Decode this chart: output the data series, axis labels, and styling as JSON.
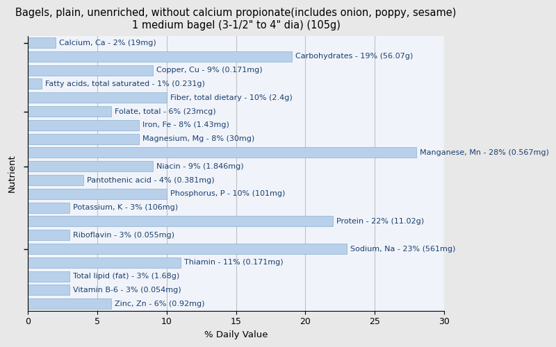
{
  "title_line1": "Bagels, plain, unenriched, without calcium propionate(includes onion, poppy, sesame)",
  "title_line2": "1 medium bagel (3-1/2\" to 4\" dia) (105g)",
  "xlabel": "% Daily Value",
  "ylabel": "Nutrient",
  "background_color": "#e8e8e8",
  "plot_bg_color": "#f0f4fa",
  "bar_color": "#b8d0ea",
  "bar_edge_color": "#8aafd0",
  "xlim": [
    0,
    30
  ],
  "xticks": [
    0,
    5,
    10,
    15,
    20,
    25,
    30
  ],
  "nutrients": [
    {
      "label": "Calcium, Ca - 2% (19mg)",
      "value": 2,
      "text_anchor": "right_of_bar"
    },
    {
      "label": "Carbohydrates - 19% (56.07g)",
      "value": 19,
      "text_anchor": "right_of_bar"
    },
    {
      "label": "Copper, Cu - 9% (0.171mg)",
      "value": 9,
      "text_anchor": "right_of_bar"
    },
    {
      "label": "Fatty acids, total saturated - 1% (0.231g)",
      "value": 1,
      "text_anchor": "right_of_bar"
    },
    {
      "label": "Fiber, total dietary - 10% (2.4g)",
      "value": 10,
      "text_anchor": "right_of_bar"
    },
    {
      "label": "Folate, total - 6% (23mcg)",
      "value": 6,
      "text_anchor": "right_of_bar"
    },
    {
      "label": "Iron, Fe - 8% (1.43mg)",
      "value": 8,
      "text_anchor": "right_of_bar"
    },
    {
      "label": "Magnesium, Mg - 8% (30mg)",
      "value": 8,
      "text_anchor": "right_of_bar"
    },
    {
      "label": "Manganese, Mn - 28% (0.567mg)",
      "value": 28,
      "text_anchor": "right_of_bar"
    },
    {
      "label": "Niacin - 9% (1.846mg)",
      "value": 9,
      "text_anchor": "right_of_bar"
    },
    {
      "label": "Pantothenic acid - 4% (0.381mg)",
      "value": 4,
      "text_anchor": "right_of_bar"
    },
    {
      "label": "Phosphorus, P - 10% (101mg)",
      "value": 10,
      "text_anchor": "right_of_bar"
    },
    {
      "label": "Potassium, K - 3% (106mg)",
      "value": 3,
      "text_anchor": "right_of_bar"
    },
    {
      "label": "Protein - 22% (11.02g)",
      "value": 22,
      "text_anchor": "right_of_bar"
    },
    {
      "label": "Riboflavin - 3% (0.055mg)",
      "value": 3,
      "text_anchor": "right_of_bar"
    },
    {
      "label": "Sodium, Na - 23% (561mg)",
      "value": 23,
      "text_anchor": "right_of_bar"
    },
    {
      "label": "Thiamin - 11% (0.171mg)",
      "value": 11,
      "text_anchor": "right_of_bar"
    },
    {
      "label": "Total lipid (fat) - 3% (1.68g)",
      "value": 3,
      "text_anchor": "right_of_bar"
    },
    {
      "label": "Vitamin B-6 - 3% (0.054mg)",
      "value": 3,
      "text_anchor": "right_of_bar"
    },
    {
      "label": "Zinc, Zn - 6% (0.92mg)",
      "value": 6,
      "text_anchor": "right_of_bar"
    }
  ],
  "text_color": "#1a3e6e",
  "title_fontsize": 10.5,
  "axis_label_fontsize": 9.5,
  "bar_label_fontsize": 8,
  "tick_fontsize": 9,
  "bar_height": 0.75,
  "ytick_rows": [
    0,
    5,
    9,
    15
  ]
}
